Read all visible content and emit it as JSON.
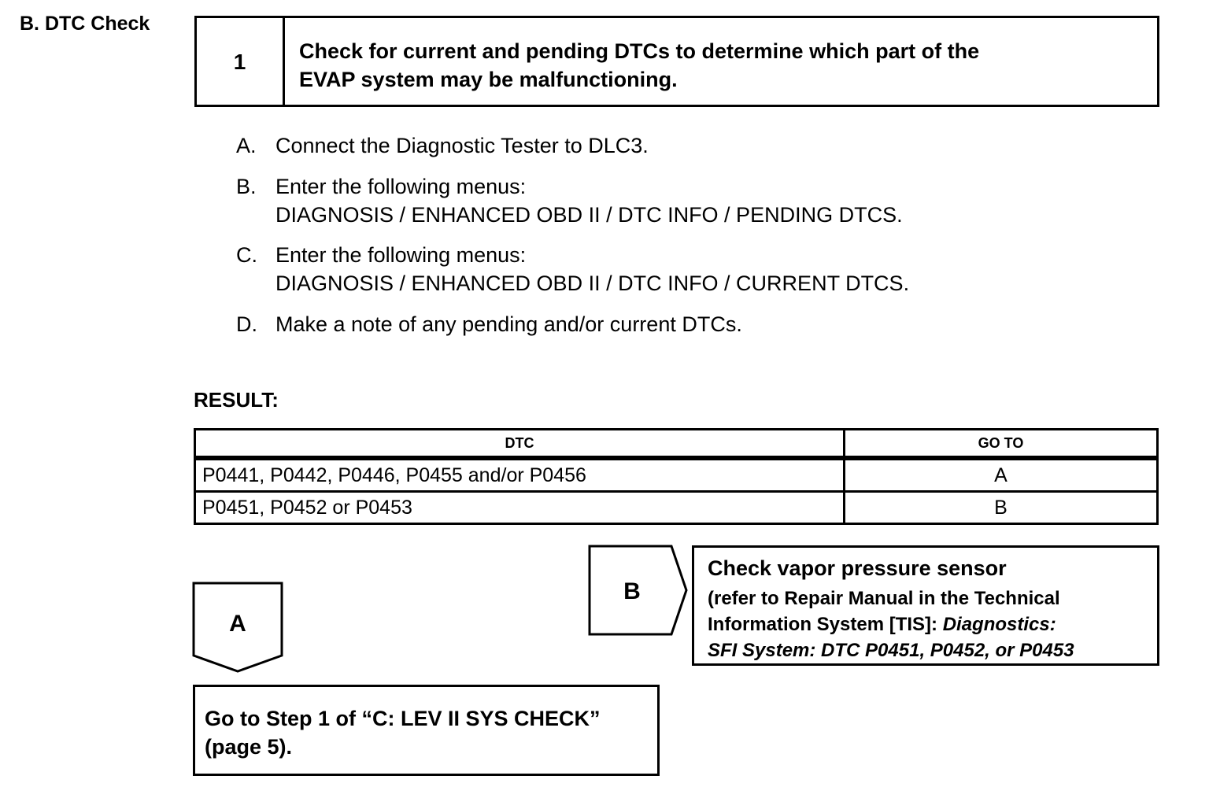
{
  "section_title": "B. DTC Check",
  "step": {
    "number": "1",
    "lines": [
      "Check for current and pending DTCs to determine which part of the",
      "EVAP system may be malfunctioning."
    ]
  },
  "instructions": [
    {
      "letter": "A.",
      "lines": [
        "Connect the Diagnostic Tester to DLC3."
      ]
    },
    {
      "letter": "B.",
      "lines": [
        "Enter the following menus:",
        "DIAGNOSIS / ENHANCED OBD II / DTC INFO / PENDING DTCS."
      ]
    },
    {
      "letter": "C.",
      "lines": [
        "Enter the following menus:",
        "DIAGNOSIS / ENHANCED OBD II / DTC INFO / CURRENT DTCS."
      ]
    },
    {
      "letter": "D.",
      "lines": [
        "Make a note of any pending and/or current DTCs."
      ]
    }
  ],
  "result_label": "RESULT:",
  "table": {
    "headers": [
      "DTC",
      "GO TO"
    ],
    "rows": [
      [
        "P0441, P0442, P0446, P0455 and/or P0456",
        "A"
      ],
      [
        "P0451, P0452 or P0453",
        "B"
      ]
    ]
  },
  "branch_a": {
    "label": "A",
    "lines": [
      "Go to Step 1 of “C: LEV II SYS CHECK”",
      "(page 5)."
    ]
  },
  "branch_b": {
    "label": "B",
    "title": "Check vapor pressure sensor",
    "line1": "(refer to Repair Manual in the Technical",
    "line2_plain": "Information System [TIS]: ",
    "line2_italic": "Diagnostics:",
    "line3_italic": "SFI System: DTC P0451, P0452, or P0453"
  }
}
